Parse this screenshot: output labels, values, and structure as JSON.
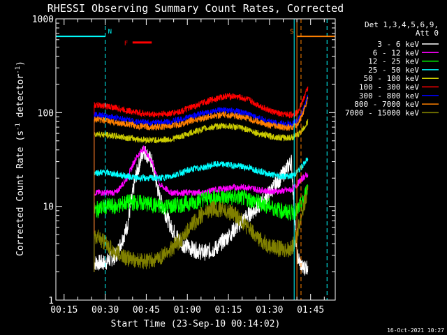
{
  "chart_data": {
    "type": "line",
    "title": "RHESSI Observing Summary Count Rates, Corrected",
    "xlabel": "Start Time (23-Sep-10 00:14:02)",
    "ylabel": "Corrected Count Rate (s",
    "ylabel_sup": "-1",
    "ylabel_mid": " detector",
    "ylabel_end": ")",
    "x_unit": "minutes after 00:14:02",
    "xlim": [
      -2,
      100
    ],
    "ylim": [
      1,
      1000
    ],
    "y_scale": "log",
    "x_ticks": [
      "00:15",
      "00:30",
      "00:45",
      "01:00",
      "01:15",
      "01:30",
      "01:45"
    ],
    "x_tick_minutes": [
      1,
      16,
      31,
      46,
      61,
      76,
      91
    ],
    "y_ticks": [
      "1",
      "10",
      "100",
      "1000"
    ],
    "y_tick_values": [
      1,
      10,
      100,
      1000
    ],
    "legend": {
      "header1": "Det 1,3,4,5,6,9,",
      "header2": "Att 0",
      "placement": "top-right outside"
    },
    "series": [
      {
        "name": "3 - 6 keV",
        "color": "#ffffff",
        "points": [
          [
            12,
            2.5
          ],
          [
            16,
            2.5
          ],
          [
            20,
            3
          ],
          [
            24,
            6
          ],
          [
            27,
            20
          ],
          [
            30,
            40
          ],
          [
            33,
            30
          ],
          [
            36,
            12
          ],
          [
            40,
            6
          ],
          [
            44,
            4
          ],
          [
            48,
            3.5
          ],
          [
            52,
            3.2
          ],
          [
            56,
            3.5
          ],
          [
            60,
            4.5
          ],
          [
            64,
            6
          ],
          [
            68,
            8
          ],
          [
            72,
            10
          ],
          [
            76,
            14
          ],
          [
            80,
            20
          ],
          [
            84,
            30
          ],
          [
            86,
            3
          ],
          [
            88,
            2.2
          ],
          [
            90,
            2.3
          ]
        ]
      },
      {
        "name": "6 - 12 keV",
        "color": "#ff00ff",
        "points": [
          [
            12,
            14
          ],
          [
            16,
            14
          ],
          [
            20,
            14
          ],
          [
            24,
            20
          ],
          [
            27,
            32
          ],
          [
            30,
            42
          ],
          [
            33,
            30
          ],
          [
            36,
            17
          ],
          [
            40,
            14
          ],
          [
            44,
            14
          ],
          [
            48,
            14
          ],
          [
            52,
            14
          ],
          [
            56,
            15
          ],
          [
            60,
            15.5
          ],
          [
            64,
            16
          ],
          [
            68,
            16
          ],
          [
            72,
            15
          ],
          [
            76,
            14.5
          ],
          [
            80,
            14.5
          ],
          [
            84,
            15
          ],
          [
            86,
            17
          ],
          [
            88,
            20
          ],
          [
            90,
            22
          ]
        ]
      },
      {
        "name": "12 - 25 keV",
        "color": "#00ff00",
        "points": [
          [
            12,
            9
          ],
          [
            16,
            10
          ],
          [
            20,
            10
          ],
          [
            24,
            11
          ],
          [
            28,
            11
          ],
          [
            32,
            10.5
          ],
          [
            36,
            10
          ],
          [
            40,
            10
          ],
          [
            44,
            10.5
          ],
          [
            48,
            11
          ],
          [
            52,
            12
          ],
          [
            56,
            12.5
          ],
          [
            60,
            12.5
          ],
          [
            64,
            12.5
          ],
          [
            68,
            12
          ],
          [
            72,
            11
          ],
          [
            76,
            10
          ],
          [
            80,
            9
          ],
          [
            84,
            8.5
          ],
          [
            86,
            9
          ],
          [
            88,
            11
          ],
          [
            90,
            16
          ]
        ]
      },
      {
        "name": "25 - 50 keV",
        "color": "#00ffff",
        "points": [
          [
            12,
            23
          ],
          [
            16,
            23
          ],
          [
            20,
            22
          ],
          [
            24,
            21
          ],
          [
            28,
            20
          ],
          [
            32,
            20
          ],
          [
            36,
            20
          ],
          [
            40,
            21
          ],
          [
            44,
            23
          ],
          [
            48,
            25
          ],
          [
            52,
            26
          ],
          [
            56,
            28
          ],
          [
            60,
            28
          ],
          [
            64,
            27
          ],
          [
            68,
            26
          ],
          [
            72,
            24
          ],
          [
            76,
            22
          ],
          [
            80,
            21
          ],
          [
            84,
            21
          ],
          [
            86,
            23
          ],
          [
            88,
            27
          ],
          [
            90,
            32
          ]
        ]
      },
      {
        "name": "50 - 100 keV",
        "color": "#cccc00",
        "points": [
          [
            12,
            60
          ],
          [
            16,
            58
          ],
          [
            20,
            56
          ],
          [
            24,
            54
          ],
          [
            28,
            52
          ],
          [
            32,
            51
          ],
          [
            36,
            51
          ],
          [
            40,
            52
          ],
          [
            44,
            56
          ],
          [
            48,
            62
          ],
          [
            52,
            67
          ],
          [
            56,
            71
          ],
          [
            60,
            72
          ],
          [
            64,
            70
          ],
          [
            68,
            66
          ],
          [
            72,
            60
          ],
          [
            76,
            56
          ],
          [
            80,
            54
          ],
          [
            84,
            54
          ],
          [
            86,
            57
          ],
          [
            88,
            65
          ],
          [
            90,
            80
          ]
        ]
      },
      {
        "name": "100 - 300 keV",
        "color": "#ff0000",
        "points": [
          [
            12,
            120
          ],
          [
            16,
            118
          ],
          [
            20,
            112
          ],
          [
            24,
            105
          ],
          [
            28,
            100
          ],
          [
            32,
            96
          ],
          [
            36,
            96
          ],
          [
            40,
            98
          ],
          [
            44,
            104
          ],
          [
            48,
            115
          ],
          [
            52,
            128
          ],
          [
            56,
            140
          ],
          [
            60,
            150
          ],
          [
            64,
            148
          ],
          [
            68,
            138
          ],
          [
            72,
            120
          ],
          [
            76,
            105
          ],
          [
            80,
            96
          ],
          [
            84,
            95
          ],
          [
            86,
            100
          ],
          [
            88,
            130
          ],
          [
            90,
            185
          ]
        ]
      },
      {
        "name": "300 - 800 keV",
        "color": "#0000ff",
        "points": [
          [
            12,
            95
          ],
          [
            16,
            92
          ],
          [
            20,
            88
          ],
          [
            24,
            84
          ],
          [
            28,
            80
          ],
          [
            32,
            78
          ],
          [
            36,
            78
          ],
          [
            40,
            80
          ],
          [
            44,
            85
          ],
          [
            48,
            92
          ],
          [
            52,
            98
          ],
          [
            56,
            104
          ],
          [
            60,
            106
          ],
          [
            64,
            103
          ],
          [
            68,
            96
          ],
          [
            72,
            88
          ],
          [
            76,
            80
          ],
          [
            80,
            76
          ],
          [
            84,
            75
          ],
          [
            86,
            80
          ],
          [
            88,
            100
          ],
          [
            90,
            150
          ]
        ]
      },
      {
        "name": "800 - 7000 keV",
        "color": "#ff8000",
        "points": [
          [
            12,
            85
          ],
          [
            16,
            82
          ],
          [
            20,
            78
          ],
          [
            24,
            75
          ],
          [
            28,
            72
          ],
          [
            32,
            70
          ],
          [
            36,
            70
          ],
          [
            40,
            72
          ],
          [
            44,
            76
          ],
          [
            48,
            83
          ],
          [
            52,
            88
          ],
          [
            56,
            93
          ],
          [
            60,
            95
          ],
          [
            64,
            92
          ],
          [
            68,
            86
          ],
          [
            72,
            80
          ],
          [
            76,
            73
          ],
          [
            80,
            70
          ],
          [
            84,
            69
          ],
          [
            86,
            73
          ],
          [
            88,
            95
          ],
          [
            90,
            140
          ]
        ]
      },
      {
        "name": "7000 - 15000 keV",
        "color": "#808000",
        "points": [
          [
            12,
            5
          ],
          [
            16,
            4
          ],
          [
            20,
            3.2
          ],
          [
            24,
            2.8
          ],
          [
            28,
            2.6
          ],
          [
            32,
            2.6
          ],
          [
            36,
            2.8
          ],
          [
            40,
            3.5
          ],
          [
            44,
            4.5
          ],
          [
            48,
            6.5
          ],
          [
            52,
            8.5
          ],
          [
            56,
            9.5
          ],
          [
            60,
            9
          ],
          [
            64,
            8
          ],
          [
            68,
            6
          ],
          [
            72,
            4.5
          ],
          [
            76,
            3.8
          ],
          [
            80,
            3.5
          ],
          [
            84,
            3.5
          ],
          [
            86,
            5
          ],
          [
            88,
            9
          ],
          [
            90,
            14
          ]
        ]
      }
    ],
    "flags": [
      {
        "label": "N",
        "color": "#00ffff",
        "x_start": -2,
        "x_end": 16,
        "y": 650
      },
      {
        "label": "S",
        "color": "#ff8000",
        "x_start": 86,
        "x_end": 100,
        "y": 650
      }
    ],
    "flare_bar": {
      "label": "F",
      "color": "#ff0000",
      "x_start": 26,
      "x_end": 33,
      "y": 560
    },
    "vlines": [
      {
        "x": 16,
        "color": "#00ffff",
        "style": "dashed"
      },
      {
        "x": 85,
        "color": "#00ffff",
        "style": "solid"
      },
      {
        "x": 86,
        "color": "#ff8000",
        "style": "solid"
      },
      {
        "x": 87.5,
        "color": "#ff8000",
        "style": "dashed"
      },
      {
        "x": 97,
        "color": "#00ffff",
        "style": "dashed"
      }
    ]
  },
  "footer": {
    "timestamp": "16-Oct-2021 10:27"
  }
}
